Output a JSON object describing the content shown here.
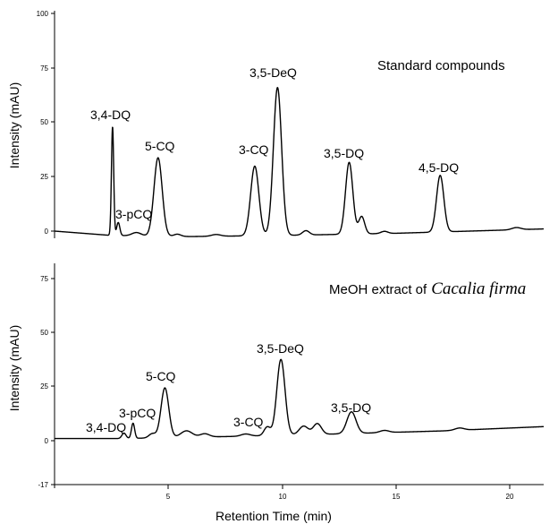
{
  "chart_data": [
    {
      "type": "line",
      "title": "Standard compounds",
      "ylabel": "Intensity (mAU)",
      "xlabel": "",
      "xlim": [
        0,
        21.5
      ],
      "ylim": [
        -3,
        100
      ],
      "y_ticks": [
        "100",
        "75",
        "50",
        "25",
        "0"
      ],
      "grid": false,
      "baseline": [
        [
          0,
          0
        ],
        [
          2.5,
          -2
        ],
        [
          6,
          -2.5
        ],
        [
          10,
          -2
        ],
        [
          15,
          -1
        ],
        [
          21.5,
          1
        ]
      ],
      "peaks": [
        {
          "label": "3,4-DQ",
          "rt": 2.55,
          "height": 50,
          "width": 0.05
        },
        {
          "label": "3-pCQ",
          "rt": 2.8,
          "height": 6,
          "width": 0.07
        },
        {
          "label": "5-CQ",
          "rt": 4.55,
          "height": 36,
          "width": 0.18
        },
        {
          "label": "3-CQ",
          "rt": 8.8,
          "height": 32,
          "width": 0.18
        },
        {
          "label": "3,5-DeQ",
          "rt": 9.8,
          "height": 68,
          "width": 0.18
        },
        {
          "label": "3,5-DQ",
          "rt": 12.95,
          "height": 33,
          "width": 0.16
        },
        {
          "label": "4,5-DQ",
          "rt": 16.95,
          "height": 26,
          "width": 0.16
        }
      ],
      "minor_peaks": [
        {
          "rt": 3.6,
          "height": 1.5,
          "width": 0.2
        },
        {
          "rt": 5.4,
          "height": 1,
          "width": 0.15
        },
        {
          "rt": 7.1,
          "height": 0.8,
          "width": 0.2
        },
        {
          "rt": 11.05,
          "height": 2,
          "width": 0.15
        },
        {
          "rt": 13.5,
          "height": 8,
          "width": 0.13
        },
        {
          "rt": 14.5,
          "height": 1,
          "width": 0.15
        },
        {
          "rt": 20.3,
          "height": 1,
          "width": 0.2
        }
      ]
    },
    {
      "type": "line",
      "title": "MeOH extract of",
      "title_italic": "Cacalia firma",
      "ylabel": "Intensity (mAU)",
      "xlabel": "Retention Time (min)",
      "xlim": [
        0,
        21.5
      ],
      "ylim": [
        -17,
        80
      ],
      "y_ticks": [
        "75",
        "50",
        "25",
        "0",
        "-17"
      ],
      "x_ticks": [
        "5",
        "10",
        "15",
        "20"
      ],
      "grid": false,
      "baseline": [
        [
          0,
          1
        ],
        [
          3,
          1
        ],
        [
          8,
          2
        ],
        [
          12,
          3
        ],
        [
          17,
          4.5
        ],
        [
          21.5,
          6.5
        ]
      ],
      "peaks": [
        {
          "label": "3,4-DQ",
          "rt": 3.05,
          "height": 2.5,
          "width": 0.09
        },
        {
          "label": "3-pCQ",
          "rt": 3.45,
          "height": 7,
          "width": 0.07
        },
        {
          "label": "5-CQ",
          "rt": 4.85,
          "height": 23,
          "width": 0.17
        },
        {
          "label": "3-CQ",
          "rt": 9.35,
          "height": 4,
          "width": 0.14
        },
        {
          "label": "3,5-DeQ",
          "rt": 9.95,
          "height": 35,
          "width": 0.18
        },
        {
          "label": "3,5-DQ",
          "rt": 13.05,
          "height": 10,
          "width": 0.2
        }
      ],
      "minor_peaks": [
        {
          "rt": 4.3,
          "height": 2,
          "width": 0.15
        },
        {
          "rt": 5.8,
          "height": 3,
          "width": 0.25
        },
        {
          "rt": 6.6,
          "height": 1.5,
          "width": 0.2
        },
        {
          "rt": 8.4,
          "height": 1,
          "width": 0.2
        },
        {
          "rt": 10.95,
          "height": 4,
          "width": 0.2
        },
        {
          "rt": 11.55,
          "height": 5,
          "width": 0.18
        },
        {
          "rt": 14.5,
          "height": 1,
          "width": 0.2
        },
        {
          "rt": 17.8,
          "height": 1,
          "width": 0.2
        }
      ]
    }
  ]
}
